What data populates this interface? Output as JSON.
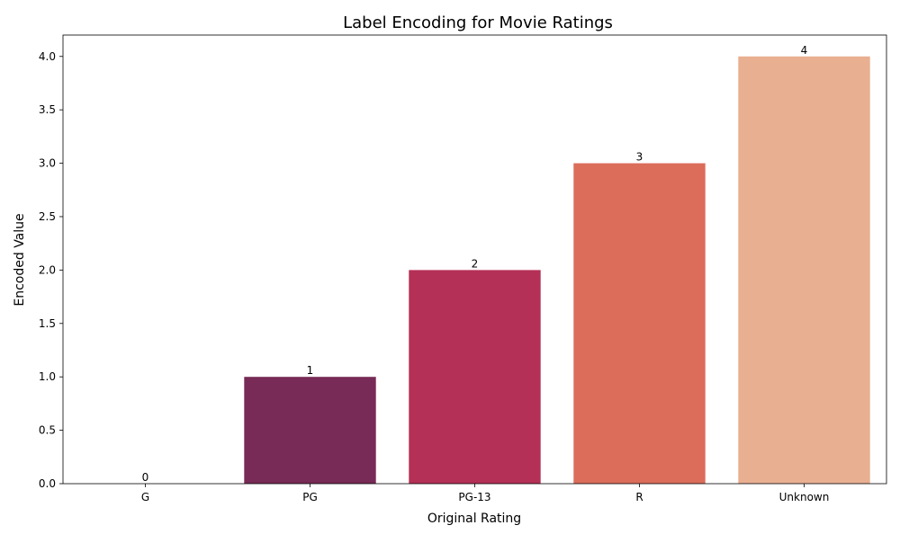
{
  "chart_data": {
    "type": "bar",
    "title": "Label Encoding for Movie Ratings",
    "xlabel": "Original Rating",
    "ylabel": "Encoded Value",
    "categories": [
      "G",
      "PG",
      "PG-13",
      "R",
      "Unknown"
    ],
    "values": [
      0,
      1,
      2,
      3,
      4
    ],
    "data_labels": [
      "0",
      "1",
      "2",
      "3",
      "4"
    ],
    "colors": [
      "#35193e",
      "#772b56",
      "#b53056",
      "#db6d5a",
      "#e9af91"
    ],
    "ylim": [
      0,
      4.2
    ],
    "yticks": [
      0.0,
      0.5,
      1.0,
      1.5,
      2.0,
      2.5,
      3.0,
      3.5,
      4.0
    ],
    "ytick_labels": [
      "0.0",
      "0.5",
      "1.0",
      "1.5",
      "2.0",
      "2.5",
      "3.0",
      "3.5",
      "4.0"
    ],
    "grid": false,
    "legend": "none"
  }
}
